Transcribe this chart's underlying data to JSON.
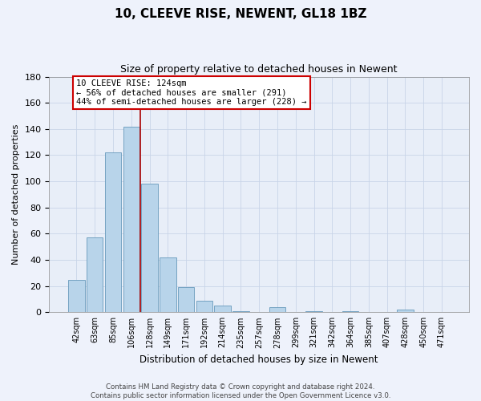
{
  "title": "10, CLEEVE RISE, NEWENT, GL18 1BZ",
  "subtitle": "Size of property relative to detached houses in Newent",
  "xlabel": "Distribution of detached houses by size in Newent",
  "ylabel": "Number of detached properties",
  "bar_labels": [
    "42sqm",
    "63sqm",
    "85sqm",
    "106sqm",
    "128sqm",
    "149sqm",
    "171sqm",
    "192sqm",
    "214sqm",
    "235sqm",
    "257sqm",
    "278sqm",
    "299sqm",
    "321sqm",
    "342sqm",
    "364sqm",
    "385sqm",
    "407sqm",
    "428sqm",
    "450sqm",
    "471sqm"
  ],
  "bar_values": [
    25,
    57,
    122,
    142,
    98,
    42,
    19,
    9,
    5,
    1,
    0,
    4,
    0,
    1,
    0,
    1,
    0,
    0,
    2,
    0,
    0
  ],
  "bar_color": "#b8d4ea",
  "bar_edge_color": "#6699bb",
  "vline_color": "#aa0000",
  "annotation_title": "10 CLEEVE RISE: 124sqm",
  "annotation_line1": "← 56% of detached houses are smaller (291)",
  "annotation_line2": "44% of semi-detached houses are larger (228) →",
  "annotation_box_color": "#ffffff",
  "annotation_box_edge": "#cc0000",
  "ylim": [
    0,
    180
  ],
  "yticks": [
    0,
    20,
    40,
    60,
    80,
    100,
    120,
    140,
    160,
    180
  ],
  "footer_line1": "Contains HM Land Registry data © Crown copyright and database right 2024.",
  "footer_line2": "Contains public sector information licensed under the Open Government Licence v3.0.",
  "bg_color": "#eef2fb",
  "plot_bg_color": "#e8eef8",
  "grid_color": "#c8d4e8"
}
